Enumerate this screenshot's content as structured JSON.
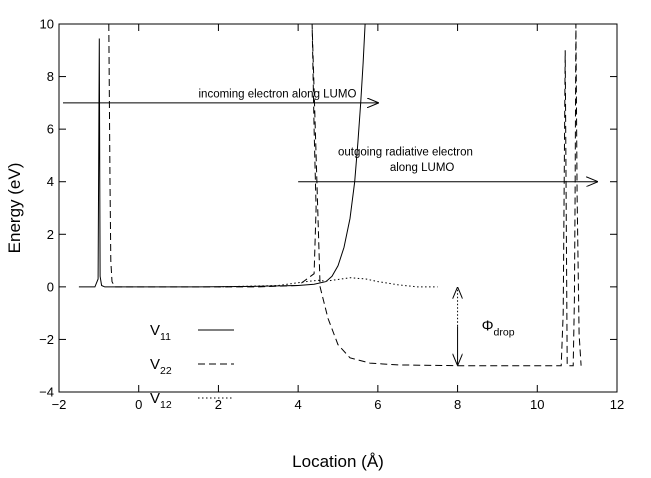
{
  "chart_data": {
    "type": "line",
    "xlabel": "Location (Å)",
    "ylabel": "Energy (eV)",
    "xlim": [
      -2,
      12
    ],
    "ylim": [
      -4,
      10
    ],
    "x_ticks": [
      -2,
      0,
      2,
      4,
      6,
      8,
      10,
      12
    ],
    "y_ticks": [
      -4,
      -2,
      0,
      2,
      4,
      6,
      8,
      10
    ],
    "grid": false,
    "legend_position": "lower-left",
    "series": [
      {
        "name": "V",
        "subscript": "11",
        "style": "solid",
        "points": [
          [
            -1.5,
            0.0
          ],
          [
            -1.1,
            0.0
          ],
          [
            -1.02,
            0.3
          ],
          [
            -0.99,
            9.45
          ],
          [
            -0.97,
            0.4
          ],
          [
            -0.93,
            0.05
          ],
          [
            -0.85,
            0.0
          ],
          [
            1.5,
            0.0
          ],
          [
            3.0,
            0.02
          ],
          [
            4.0,
            0.05
          ],
          [
            4.4,
            0.1
          ],
          [
            4.7,
            0.2
          ],
          [
            4.85,
            0.4
          ],
          [
            5.0,
            0.8
          ],
          [
            5.15,
            1.5
          ],
          [
            5.3,
            2.6
          ],
          [
            5.42,
            4.0
          ],
          [
            5.5,
            5.5
          ],
          [
            5.57,
            7.0
          ],
          [
            5.63,
            8.5
          ],
          [
            5.68,
            10.0
          ]
        ]
      },
      {
        "name": "V",
        "subscript": "22",
        "style": "dashed",
        "points": [
          [
            -0.75,
            10.0
          ],
          [
            -0.72,
            4.0
          ],
          [
            -0.7,
            1.0
          ],
          [
            -0.67,
            0.2
          ],
          [
            -0.6,
            0.0
          ],
          [
            1.0,
            0.0
          ],
          [
            3.0,
            0.0
          ],
          [
            4.0,
            0.05
          ],
          [
            4.4,
            0.5
          ],
          [
            4.45,
            3.0
          ],
          [
            4.4,
            6.0
          ],
          [
            4.35,
            10.0
          ],
          [
            4.55,
            0.0
          ],
          [
            4.75,
            -1.2
          ],
          [
            5.0,
            -2.2
          ],
          [
            5.3,
            -2.7
          ],
          [
            5.8,
            -2.9
          ],
          [
            6.5,
            -2.97
          ],
          [
            8.0,
            -3.0
          ],
          [
            10.0,
            -3.0
          ],
          [
            10.6,
            -3.0
          ],
          [
            10.65,
            -1.0
          ],
          [
            10.68,
            5.0
          ],
          [
            10.7,
            9.0
          ],
          [
            10.75,
            -3.0
          ],
          [
            10.9,
            -3.0
          ],
          [
            10.93,
            -0.5
          ],
          [
            10.95,
            3.5
          ],
          [
            10.97,
            10.0
          ],
          [
            11.0,
            3.5
          ],
          [
            11.05,
            -1.8
          ],
          [
            11.1,
            -3.0
          ]
        ]
      },
      {
        "name": "V",
        "subscript": "12",
        "style": "dotted",
        "points": [
          [
            2.0,
            0.0
          ],
          [
            3.5,
            0.05
          ],
          [
            4.2,
            0.2
          ],
          [
            4.5,
            0.25
          ],
          [
            4.7,
            0.22
          ],
          [
            5.0,
            0.28
          ],
          [
            5.3,
            0.35
          ],
          [
            5.7,
            0.3
          ],
          [
            6.0,
            0.2
          ],
          [
            6.5,
            0.08
          ],
          [
            7.0,
            0.0
          ],
          [
            7.5,
            0.0
          ]
        ]
      }
    ],
    "annotations": [
      {
        "text": "incoming electron along LUMO",
        "x": 1.5,
        "y": 7.2
      },
      {
        "text": "outgoing radiative electron",
        "x": 5.0,
        "y": 5.0
      },
      {
        "text": "along LUMO",
        "x": 6.3,
        "y": 4.4
      }
    ],
    "arrows": [
      {
        "from": [
          -1.9,
          7.0
        ],
        "to": [
          6.0,
          7.0
        ]
      },
      {
        "from": [
          4.0,
          4.0
        ],
        "to": [
          11.5,
          4.0
        ]
      }
    ],
    "drop_arrow": {
      "x": 8.0,
      "from": 0.0,
      "to": -3.0
    },
    "drop_label": {
      "symbol": "Φ",
      "subscript": "drop"
    }
  }
}
